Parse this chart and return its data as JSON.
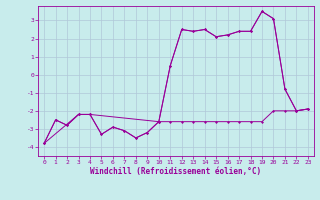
{
  "title": "",
  "xlabel": "Windchill (Refroidissement éolien,°C)",
  "ylabel": "",
  "background_color": "#c8ecec",
  "grid_color": "#b0c8d8",
  "line_color": "#990099",
  "xlim": [
    -0.5,
    23.5
  ],
  "ylim": [
    -4.5,
    3.8
  ],
  "xticks": [
    0,
    1,
    2,
    3,
    4,
    5,
    6,
    7,
    8,
    9,
    10,
    11,
    12,
    13,
    14,
    15,
    16,
    17,
    18,
    19,
    20,
    21,
    22,
    23
  ],
  "yticks": [
    -4,
    -3,
    -2,
    -1,
    0,
    1,
    2,
    3
  ],
  "series1_x": [
    0,
    1,
    2,
    3,
    4,
    5,
    6,
    7,
    8,
    9,
    10,
    11,
    12,
    13,
    14,
    15,
    16,
    17,
    18,
    19,
    20,
    21,
    22,
    23
  ],
  "series1_y": [
    -3.8,
    -2.5,
    -2.8,
    -2.2,
    -2.2,
    -3.3,
    -2.9,
    -3.1,
    -3.5,
    -3.2,
    -2.6,
    -2.6,
    -2.6,
    -2.6,
    -2.6,
    -2.6,
    -2.6,
    -2.6,
    -2.6,
    -2.6,
    -2.0,
    -2.0,
    -2.0,
    -1.9
  ],
  "series2_x": [
    0,
    1,
    2,
    3,
    4,
    5,
    6,
    7,
    8,
    9,
    10,
    11,
    12,
    13,
    14,
    15,
    16,
    17,
    18,
    19,
    20,
    21,
    22,
    23
  ],
  "series2_y": [
    -3.8,
    -2.5,
    -2.8,
    -2.2,
    -2.2,
    -3.3,
    -2.9,
    -3.1,
    -3.5,
    -3.2,
    -2.6,
    0.5,
    2.5,
    2.4,
    2.5,
    2.1,
    2.2,
    2.4,
    2.4,
    3.5,
    3.1,
    -0.8,
    -2.0,
    -1.9
  ],
  "series3_x": [
    0,
    3,
    4,
    10,
    11,
    12,
    13,
    14,
    15,
    16,
    17,
    18,
    19,
    20,
    21,
    22,
    23
  ],
  "series3_y": [
    -3.8,
    -2.2,
    -2.2,
    -2.6,
    0.5,
    2.5,
    2.4,
    2.5,
    2.1,
    2.2,
    2.4,
    2.4,
    3.5,
    3.1,
    -0.8,
    -2.0,
    -1.9
  ],
  "lw": 0.7,
  "markersize": 1.5,
  "tick_fontsize": 4.5,
  "xlabel_fontsize": 5.5
}
